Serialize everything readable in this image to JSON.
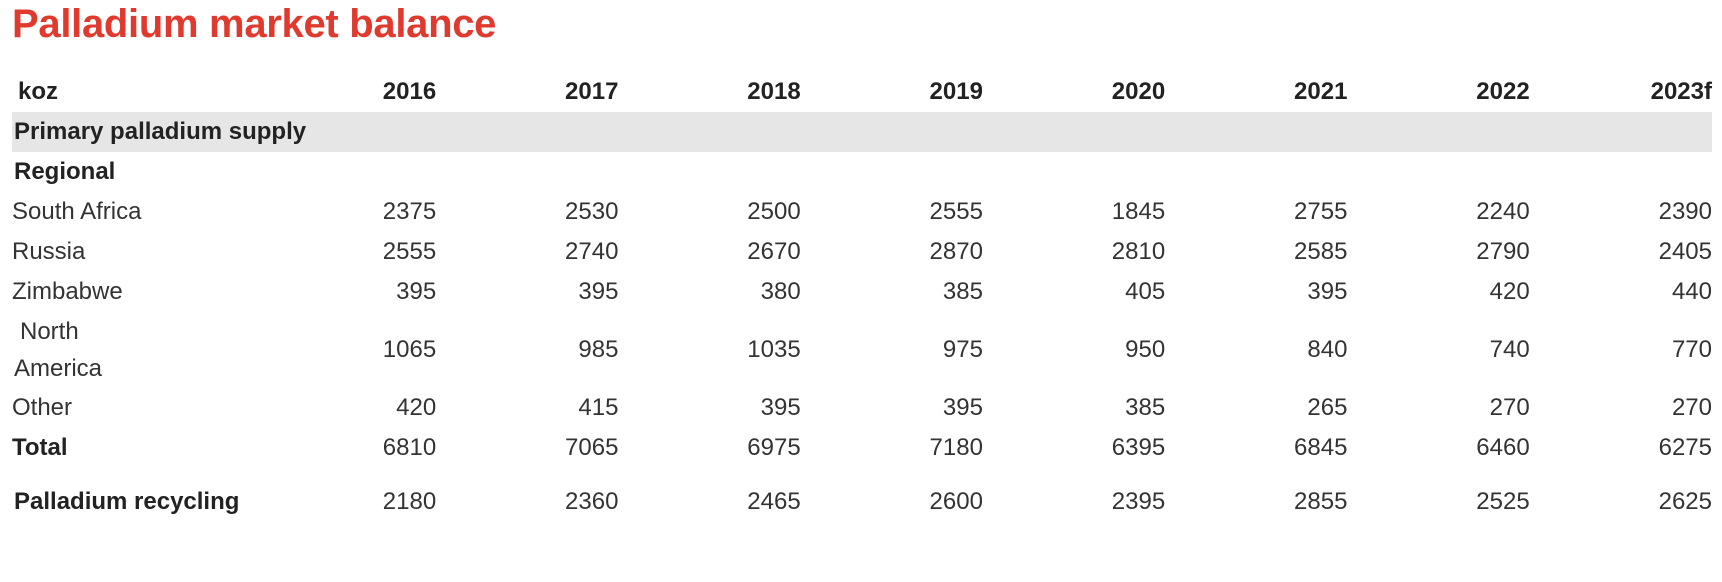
{
  "title": "Palladium market balance",
  "table": {
    "unit": "koz",
    "years": [
      "2016",
      "2017",
      "2018",
      "2019",
      "2020",
      "2021",
      "2022",
      "2023f"
    ],
    "section_label": "Primary palladium supply",
    "group_label": "Regional",
    "rows": [
      {
        "label": "South Africa",
        "values": [
          "2375",
          "2530",
          "2500",
          "2555",
          "1845",
          "2755",
          "2240",
          "2390"
        ]
      },
      {
        "label": "Russia",
        "values": [
          "2555",
          "2740",
          "2670",
          "2870",
          "2810",
          "2585",
          "2790",
          "2405"
        ]
      },
      {
        "label": "Zimbabwe",
        "values": [
          "395",
          "395",
          "380",
          "385",
          "405",
          "395",
          "420",
          "440"
        ]
      },
      {
        "label_line1": "North",
        "label_line2": "America",
        "values": [
          "1065",
          "985",
          "1035",
          "975",
          "950",
          "840",
          "740",
          "770"
        ]
      },
      {
        "label": "Other",
        "values": [
          "420",
          "415",
          "395",
          "395",
          "385",
          "265",
          "270",
          "270"
        ]
      }
    ],
    "total": {
      "label": "Total",
      "values": [
        "6810",
        "7065",
        "6975",
        "7180",
        "6395",
        "6845",
        "6460",
        "6275"
      ]
    },
    "recycling": {
      "label": "Palladium recycling",
      "values": [
        "2180",
        "2360",
        "2465",
        "2600",
        "2395",
        "2855",
        "2525",
        "2625"
      ]
    }
  }
}
